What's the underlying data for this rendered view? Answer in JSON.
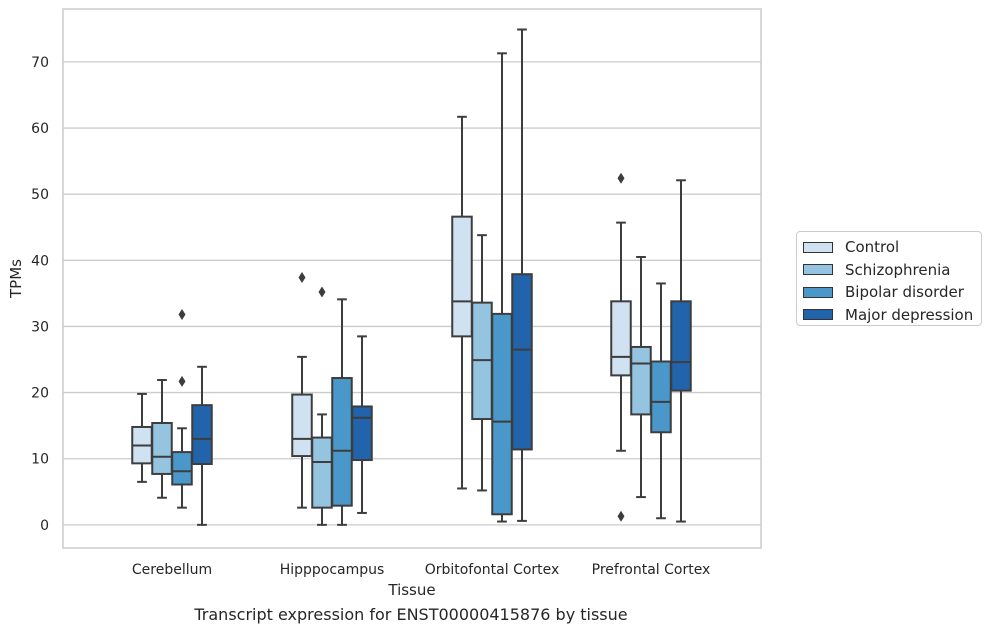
{
  "chart_data": {
    "type": "box",
    "xlabel": "Tissue",
    "ylabel": "TPMs",
    "caption": "Transcript expression for ENST00000415876 by tissue",
    "ylim": [
      -3.5,
      78
    ],
    "yticks": [
      0,
      10,
      20,
      30,
      40,
      50,
      60,
      70
    ],
    "grid": true,
    "legend_position": "right",
    "categories": [
      "Cerebellum",
      "Hipppocampus",
      "Orbitofontal Cortex",
      "Prefrontal Cortex"
    ],
    "series": [
      {
        "name": "Control",
        "color": "#d0e1f2",
        "boxes": [
          {
            "whisker_low": 6.5,
            "q1": 9.3,
            "median": 12.0,
            "q3": 14.8,
            "whisker_high": 19.8,
            "outliers": []
          },
          {
            "whisker_low": 2.6,
            "q1": 10.4,
            "median": 13.0,
            "q3": 19.7,
            "whisker_high": 25.4,
            "outliers": [
              37.4
            ]
          },
          {
            "whisker_low": 5.5,
            "q1": 28.5,
            "median": 33.8,
            "q3": 46.6,
            "whisker_high": 61.7,
            "outliers": []
          },
          {
            "whisker_low": 11.2,
            "q1": 22.6,
            "median": 25.4,
            "q3": 33.8,
            "whisker_high": 45.7,
            "outliers": [
              52.4,
              1.3
            ]
          }
        ]
      },
      {
        "name": "Schizophrenia",
        "color": "#94c4df",
        "boxes": [
          {
            "whisker_low": 4.1,
            "q1": 7.7,
            "median": 10.3,
            "q3": 15.4,
            "whisker_high": 21.9,
            "outliers": []
          },
          {
            "whisker_low": 0.0,
            "q1": 2.6,
            "median": 9.5,
            "q3": 13.2,
            "whisker_high": 16.7,
            "outliers": [
              35.2
            ]
          },
          {
            "whisker_low": 5.2,
            "q1": 16.0,
            "median": 24.9,
            "q3": 33.6,
            "whisker_high": 43.8,
            "outliers": []
          },
          {
            "whisker_low": 4.2,
            "q1": 16.7,
            "median": 24.4,
            "q3": 26.9,
            "whisker_high": 40.5,
            "outliers": []
          }
        ]
      },
      {
        "name": "Bipolar disorder",
        "color": "#4a98c9",
        "boxes": [
          {
            "whisker_low": 2.6,
            "q1": 6.1,
            "median": 8.1,
            "q3": 11.0,
            "whisker_high": 14.6,
            "outliers": [
              21.7,
              31.8
            ]
          },
          {
            "whisker_low": 0.0,
            "q1": 2.9,
            "median": 11.2,
            "q3": 22.2,
            "whisker_high": 34.1,
            "outliers": []
          },
          {
            "whisker_low": 0.5,
            "q1": 1.6,
            "median": 15.6,
            "q3": 31.9,
            "whisker_high": 71.3,
            "outliers": []
          },
          {
            "whisker_low": 1.0,
            "q1": 14.0,
            "median": 18.6,
            "q3": 24.7,
            "whisker_high": 36.5,
            "outliers": []
          }
        ]
      },
      {
        "name": "Major depression",
        "color": "#2164ab",
        "boxes": [
          {
            "whisker_low": 0.0,
            "q1": 9.2,
            "median": 13.0,
            "q3": 18.1,
            "whisker_high": 23.9,
            "outliers": []
          },
          {
            "whisker_low": 1.8,
            "q1": 9.8,
            "median": 16.2,
            "q3": 17.9,
            "whisker_high": 28.5,
            "outliers": []
          },
          {
            "whisker_low": 0.6,
            "q1": 11.4,
            "median": 26.5,
            "q3": 37.9,
            "whisker_high": 74.9,
            "outliers": []
          },
          {
            "whisker_low": 0.5,
            "q1": 20.3,
            "median": 24.6,
            "q3": 33.8,
            "whisker_high": 52.1,
            "outliers": []
          }
        ]
      }
    ]
  }
}
